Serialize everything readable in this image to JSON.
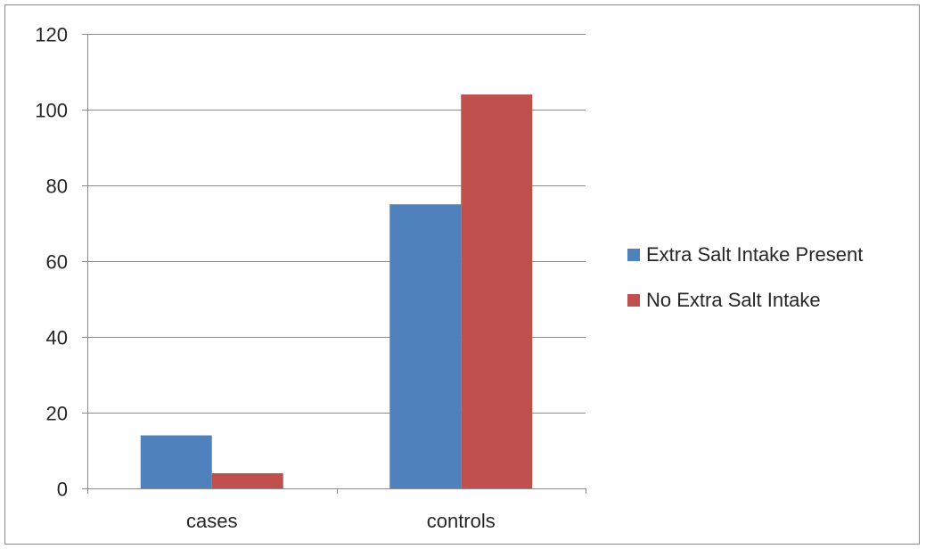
{
  "chart_data": {
    "type": "bar",
    "categories": [
      "cases",
      "controls"
    ],
    "series": [
      {
        "name": "Extra Salt Intake Present",
        "values": [
          14,
          75
        ],
        "color": "#4f81bd"
      },
      {
        "name": "No Extra Salt Intake",
        "values": [
          4,
          104
        ],
        "color": "#c0504d"
      }
    ],
    "yticks": [
      "0",
      "20",
      "40",
      "60",
      "80",
      "100",
      "120"
    ],
    "ylim": [
      0,
      120
    ],
    "grid": true,
    "legend_position": "right"
  }
}
